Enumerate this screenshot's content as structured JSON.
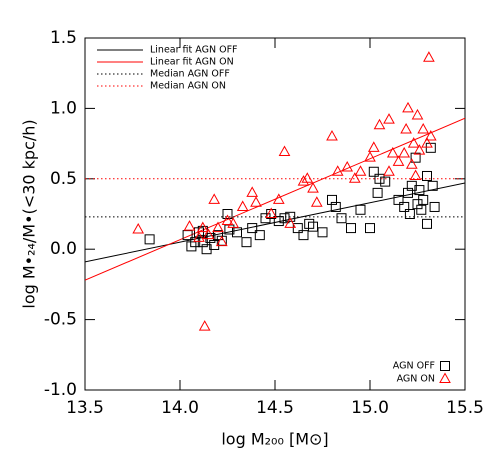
{
  "chart_data": {
    "type": "scatter",
    "xlabel": "log M₂₀₀ [M⊙]",
    "ylabel": "log M•₂₄/M•(<30 kpc/h)",
    "xlim": [
      13.5,
      15.5
    ],
    "ylim": [
      -1.0,
      1.5
    ],
    "xticks": [
      13.5,
      {
        "value": 14,
        "label": "14.0"
      },
      14.5,
      {
        "value": 15,
        "label": "15.0"
      },
      15.5
    ],
    "yticks": [
      {
        "value": -1,
        "label": "-1.0"
      },
      -0.5,
      {
        "value": 0,
        "label": "0.0"
      },
      0.5,
      {
        "value": 1,
        "label": "1.0"
      },
      1.5
    ],
    "series": [
      {
        "name": "Linear fit AGN OFF",
        "kind": "line",
        "dash": "solid",
        "color": "#000000",
        "legend": "upper left",
        "x": [
          13.5,
          15.5
        ],
        "values": [
          -0.09,
          0.47
        ]
      },
      {
        "name": "Linear fit AGN ON",
        "kind": "line",
        "dash": "solid",
        "color": "#ff0000",
        "legend": "upper left",
        "x": [
          13.5,
          15.5
        ],
        "values": [
          -0.22,
          0.93
        ]
      },
      {
        "name": "Median AGN OFF",
        "kind": "line",
        "dash": "dotted",
        "color": "#000000",
        "legend": "upper left",
        "x": [
          13.5,
          15.5
        ],
        "values": [
          0.23,
          0.23
        ]
      },
      {
        "name": "Median AGN ON",
        "kind": "line",
        "dash": "dotted",
        "color": "#ff0000",
        "legend": "upper left",
        "x": [
          13.5,
          15.5
        ],
        "values": [
          0.5,
          0.5
        ]
      },
      {
        "name": "AGN OFF",
        "kind": "points",
        "marker": "square",
        "color": "#000000",
        "legend": "lower right",
        "x": [
          13.84,
          14.04,
          14.06,
          14.08,
          14.1,
          14.12,
          14.14,
          14.16,
          14.18,
          14.2,
          14.22,
          14.26,
          14.3,
          14.35,
          14.38,
          14.42,
          14.45,
          14.48,
          14.52,
          14.58,
          14.62,
          14.65,
          14.68,
          14.7,
          14.75,
          14.8,
          14.82,
          14.85,
          14.9,
          14.95,
          15.0,
          15.02,
          15.04,
          15.05,
          15.08,
          15.15,
          15.18,
          15.2,
          15.21,
          15.22,
          15.24,
          15.25,
          15.26,
          15.27,
          15.28,
          15.3,
          15.3,
          15.32,
          15.33,
          15.34,
          14.12,
          14.25,
          14.55
        ],
        "values": [
          0.07,
          0.1,
          0.02,
          0.05,
          0.12,
          0.05,
          0.0,
          0.08,
          0.03,
          0.1,
          0.06,
          0.14,
          0.12,
          0.05,
          0.15,
          0.1,
          0.22,
          0.25,
          0.2,
          0.23,
          0.15,
          0.1,
          0.18,
          0.16,
          0.12,
          0.35,
          0.3,
          0.22,
          0.15,
          0.28,
          0.15,
          0.55,
          0.4,
          0.5,
          0.48,
          0.35,
          0.3,
          0.4,
          0.25,
          0.45,
          0.65,
          0.32,
          0.42,
          0.28,
          0.35,
          0.52,
          0.18,
          0.72,
          0.45,
          0.3,
          0.13,
          0.25,
          0.22
        ]
      },
      {
        "name": "AGN ON",
        "kind": "points",
        "marker": "triangle",
        "color": "#ff0000",
        "legend": "lower right",
        "x": [
          13.78,
          14.05,
          14.1,
          14.12,
          14.13,
          14.15,
          14.18,
          14.2,
          14.22,
          14.25,
          14.28,
          14.33,
          14.38,
          14.4,
          14.48,
          14.52,
          14.55,
          14.65,
          14.67,
          14.7,
          14.72,
          14.8,
          14.83,
          14.88,
          14.92,
          14.95,
          15.0,
          15.02,
          15.05,
          15.1,
          15.12,
          15.15,
          15.18,
          15.19,
          15.2,
          15.22,
          15.23,
          15.24,
          15.25,
          15.26,
          15.28,
          15.3,
          15.31,
          15.32,
          14.58,
          15.1
        ],
        "values": [
          0.14,
          0.16,
          0.08,
          0.15,
          -0.55,
          0.1,
          0.35,
          0.15,
          0.05,
          0.2,
          0.18,
          0.3,
          0.4,
          0.33,
          0.25,
          0.35,
          0.69,
          0.48,
          0.5,
          0.43,
          0.33,
          0.8,
          0.55,
          0.58,
          0.5,
          0.55,
          0.65,
          0.72,
          0.88,
          0.55,
          0.68,
          0.62,
          0.68,
          0.85,
          1.0,
          0.6,
          0.75,
          0.52,
          0.95,
          0.7,
          0.85,
          0.75,
          1.36,
          0.8,
          0.18,
          0.92
        ]
      }
    ]
  }
}
